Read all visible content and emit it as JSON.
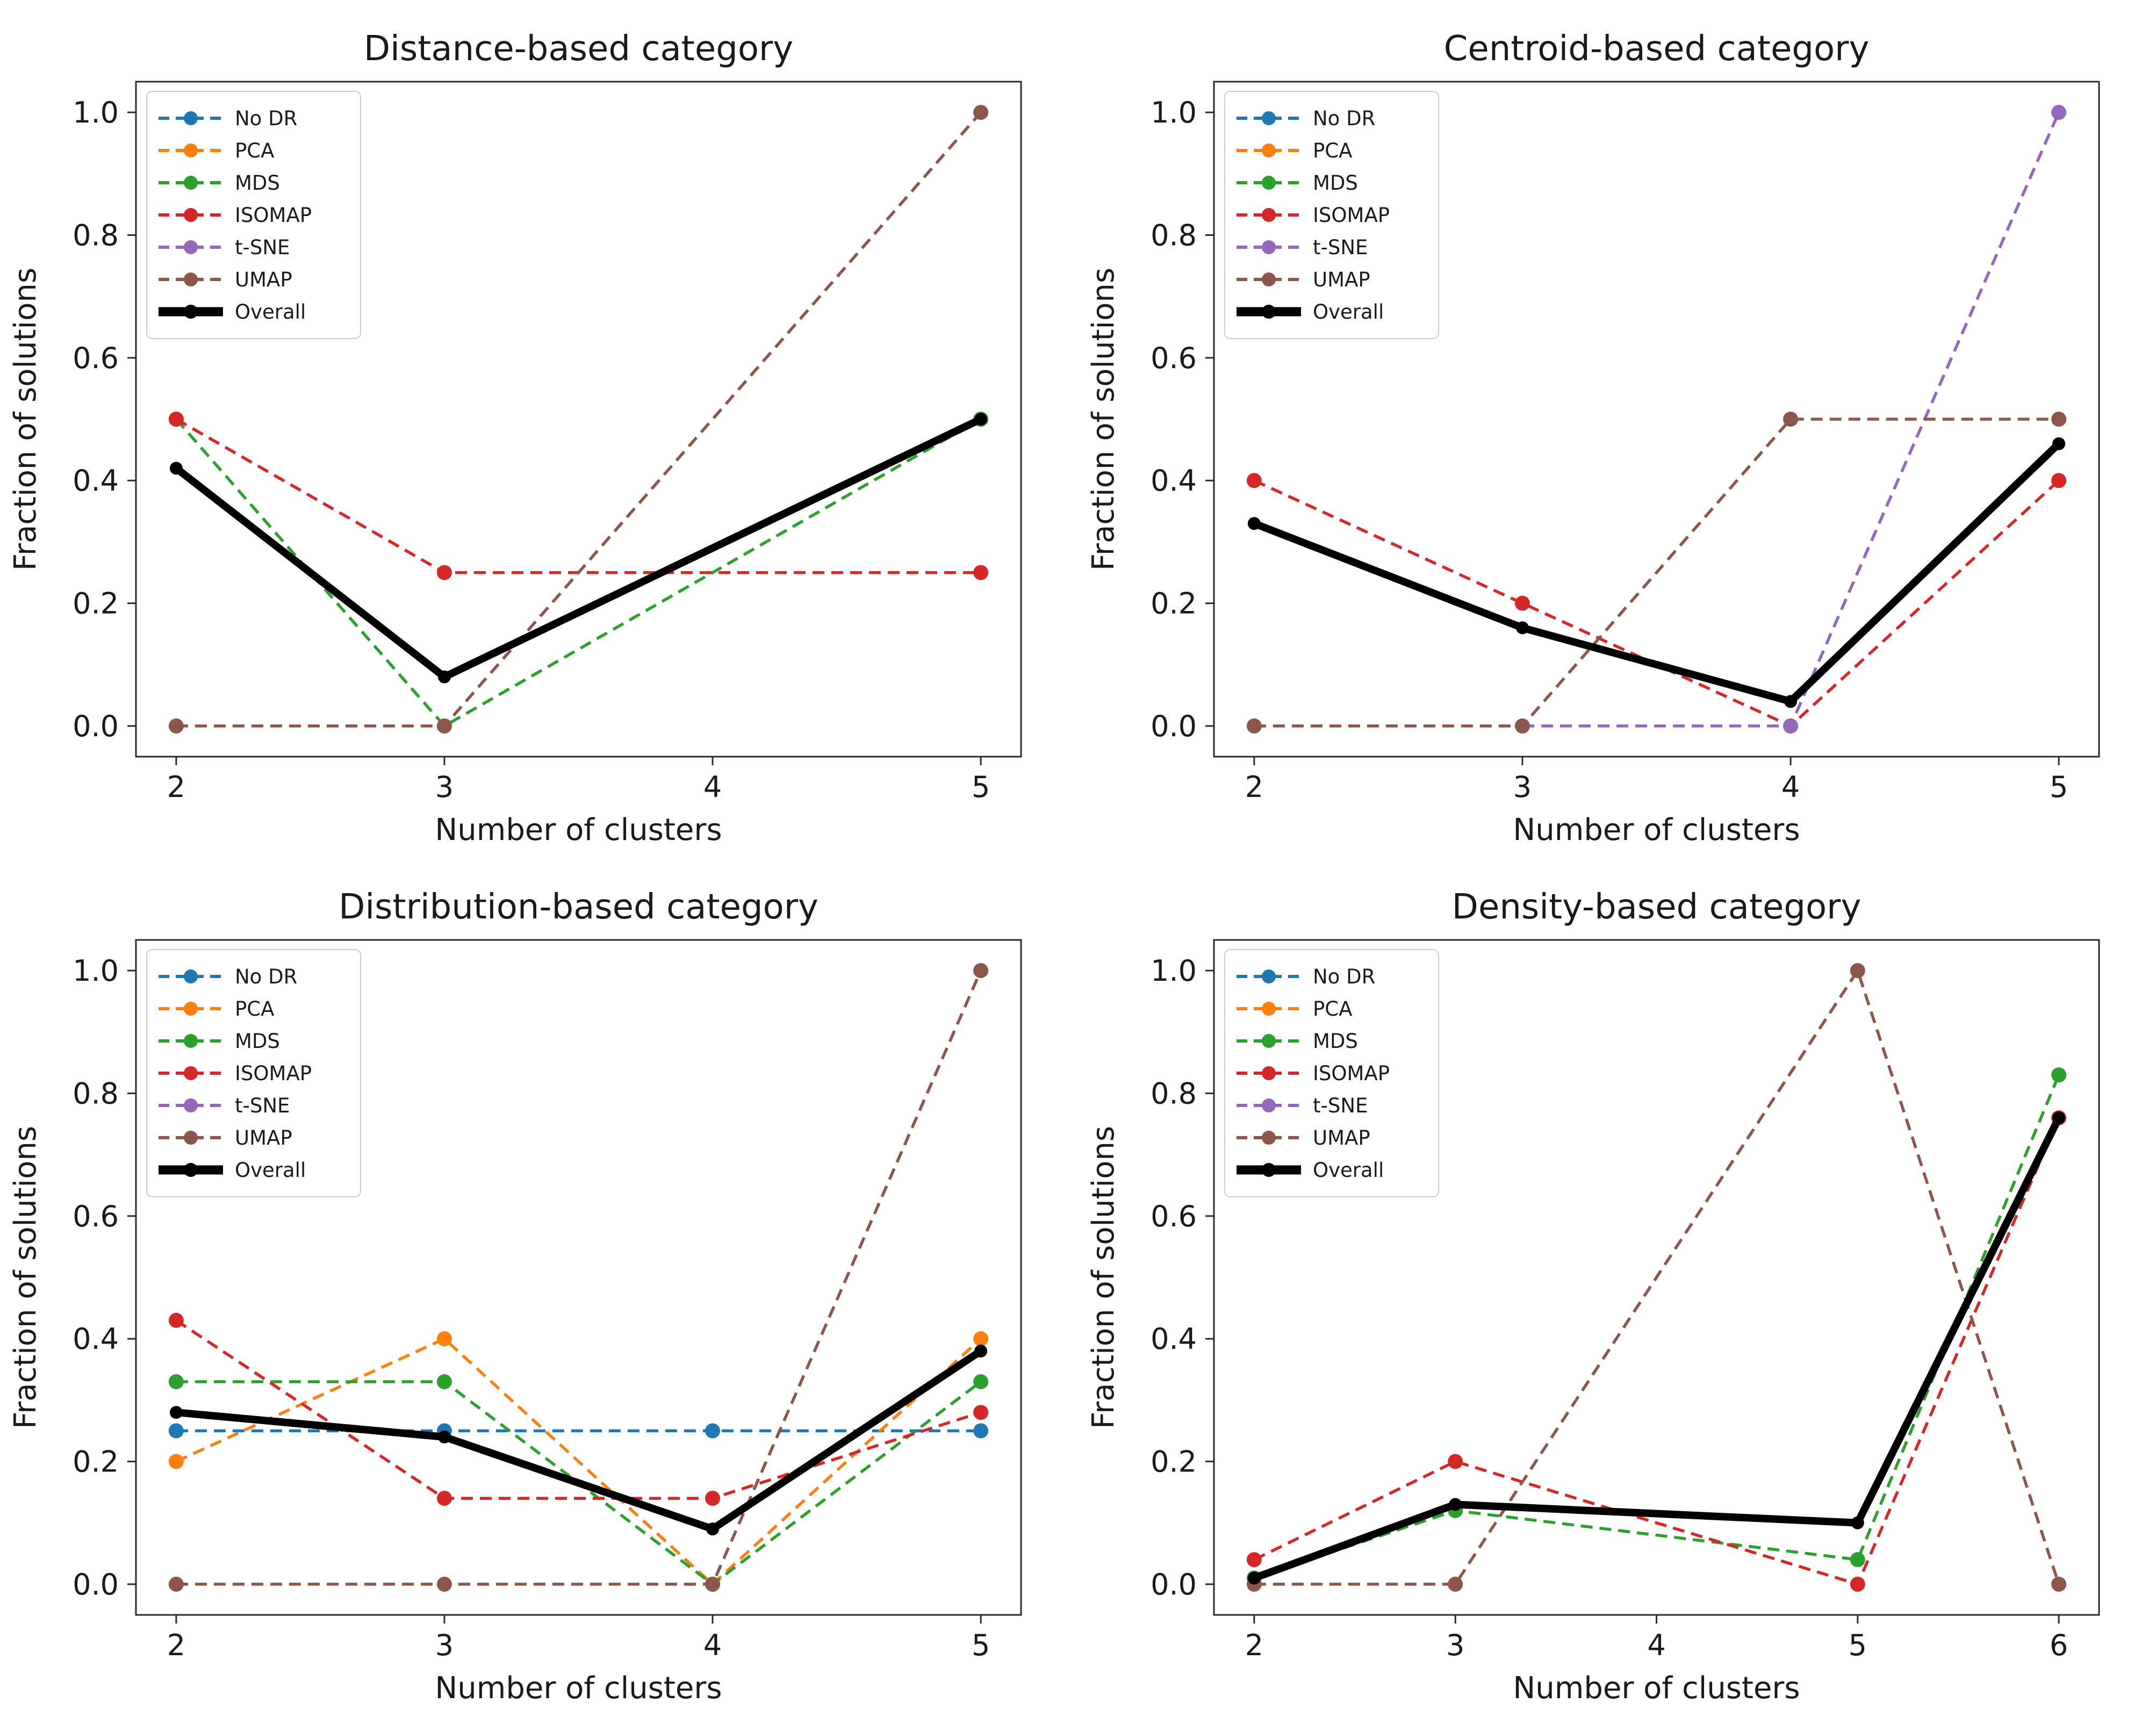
{
  "figure": {
    "background": "#ffffff",
    "text_color": "#1a1a1a",
    "spine_color": "#2b2b2b",
    "legend_border_color": "#cfcfcf"
  },
  "legend": {
    "entries": [
      {
        "label": "No DR",
        "color": "#1f77b4"
      },
      {
        "label": "PCA",
        "color": "#ff7f0e"
      },
      {
        "label": "MDS",
        "color": "#2ca02c"
      },
      {
        "label": "ISOMAP",
        "color": "#d62728"
      },
      {
        "label": "t-SNE",
        "color": "#9467bd"
      },
      {
        "label": "UMAP",
        "color": "#8c564b"
      },
      {
        "label": "Overall",
        "color": "#000000"
      }
    ],
    "position": "upper-left"
  },
  "chart_data": [
    {
      "id": "distance",
      "type": "line",
      "title": "Distance-based category",
      "xlabel": "Number of clusters",
      "ylabel": "Fraction of solutions",
      "xticks": [
        2,
        3,
        4,
        5
      ],
      "yticks": [
        0.0,
        0.2,
        0.4,
        0.6,
        0.8,
        1.0
      ],
      "xlim": [
        1.85,
        5.15
      ],
      "ylim": [
        -0.05,
        1.05
      ],
      "grid": false,
      "legend_position": "upper-left",
      "series": [
        {
          "name": "No DR",
          "color": "#1f77b4",
          "style": "dashed",
          "x": [],
          "y": []
        },
        {
          "name": "PCA",
          "color": "#ff7f0e",
          "style": "dashed",
          "x": [],
          "y": []
        },
        {
          "name": "MDS",
          "color": "#2ca02c",
          "style": "dashed",
          "x": [
            2,
            3,
            5
          ],
          "y": [
            0.5,
            0.0,
            0.5
          ]
        },
        {
          "name": "ISOMAP",
          "color": "#d62728",
          "style": "dashed",
          "x": [
            2,
            3,
            5
          ],
          "y": [
            0.5,
            0.25,
            0.25
          ]
        },
        {
          "name": "t-SNE",
          "color": "#9467bd",
          "style": "dashed",
          "x": [],
          "y": []
        },
        {
          "name": "UMAP",
          "color": "#8c564b",
          "style": "dashed",
          "x": [
            2,
            3,
            5
          ],
          "y": [
            0.0,
            0.0,
            1.0
          ]
        },
        {
          "name": "Overall",
          "color": "#000000",
          "style": "solid-thick",
          "x": [
            2,
            3,
            5
          ],
          "y": [
            0.42,
            0.08,
            0.5
          ]
        }
      ]
    },
    {
      "id": "centroid",
      "type": "line",
      "title": "Centroid-based category",
      "xlabel": "Number of clusters",
      "ylabel": "Fraction of solutions",
      "xticks": [
        2,
        3,
        4,
        5
      ],
      "yticks": [
        0.0,
        0.2,
        0.4,
        0.6,
        0.8,
        1.0
      ],
      "xlim": [
        1.85,
        5.15
      ],
      "ylim": [
        -0.05,
        1.05
      ],
      "grid": false,
      "legend_position": "upper-left",
      "series": [
        {
          "name": "No DR",
          "color": "#1f77b4",
          "style": "dashed",
          "x": [],
          "y": []
        },
        {
          "name": "PCA",
          "color": "#ff7f0e",
          "style": "dashed",
          "x": [],
          "y": []
        },
        {
          "name": "MDS",
          "color": "#2ca02c",
          "style": "dashed",
          "x": [],
          "y": []
        },
        {
          "name": "ISOMAP",
          "color": "#d62728",
          "style": "dashed",
          "x": [
            2,
            3,
            4,
            5
          ],
          "y": [
            0.4,
            0.2,
            0.0,
            0.4
          ]
        },
        {
          "name": "t-SNE",
          "color": "#9467bd",
          "style": "dashed",
          "x": [
            3,
            4,
            5
          ],
          "y": [
            0.0,
            0.0,
            1.0
          ]
        },
        {
          "name": "UMAP",
          "color": "#8c564b",
          "style": "dashed",
          "x": [
            2,
            3,
            4,
            5
          ],
          "y": [
            0.0,
            0.0,
            0.5,
            0.5
          ]
        },
        {
          "name": "Overall",
          "color": "#000000",
          "style": "solid-thick",
          "x": [
            2,
            3,
            4,
            5
          ],
          "y": [
            0.33,
            0.16,
            0.04,
            0.46
          ]
        }
      ]
    },
    {
      "id": "distribution",
      "type": "line",
      "title": "Distribution-based category",
      "xlabel": "Number of clusters",
      "ylabel": "Fraction of solutions",
      "xticks": [
        2,
        3,
        4,
        5
      ],
      "yticks": [
        0.0,
        0.2,
        0.4,
        0.6,
        0.8,
        1.0
      ],
      "xlim": [
        1.85,
        5.15
      ],
      "ylim": [
        -0.05,
        1.05
      ],
      "grid": false,
      "legend_position": "upper-left",
      "series": [
        {
          "name": "No DR",
          "color": "#1f77b4",
          "style": "dashed",
          "x": [
            2,
            3,
            4,
            5
          ],
          "y": [
            0.25,
            0.25,
            0.25,
            0.25
          ]
        },
        {
          "name": "PCA",
          "color": "#ff7f0e",
          "style": "dashed",
          "x": [
            2,
            3,
            4,
            5
          ],
          "y": [
            0.2,
            0.4,
            0.0,
            0.4
          ]
        },
        {
          "name": "MDS",
          "color": "#2ca02c",
          "style": "dashed",
          "x": [
            2,
            3,
            4,
            5
          ],
          "y": [
            0.33,
            0.33,
            0.0,
            0.33
          ]
        },
        {
          "name": "ISOMAP",
          "color": "#d62728",
          "style": "dashed",
          "x": [
            2,
            3,
            4,
            5
          ],
          "y": [
            0.43,
            0.14,
            0.14,
            0.28
          ]
        },
        {
          "name": "t-SNE",
          "color": "#9467bd",
          "style": "dashed",
          "x": [],
          "y": []
        },
        {
          "name": "UMAP",
          "color": "#8c564b",
          "style": "dashed",
          "x": [
            2,
            3,
            4,
            5
          ],
          "y": [
            0.0,
            0.0,
            0.0,
            1.0
          ]
        },
        {
          "name": "Overall",
          "color": "#000000",
          "style": "solid-thick",
          "x": [
            2,
            3,
            4,
            5
          ],
          "y": [
            0.28,
            0.24,
            0.09,
            0.38
          ]
        }
      ]
    },
    {
      "id": "density",
      "type": "line",
      "title": "Density-based category",
      "xlabel": "Number of clusters",
      "ylabel": "Fraction of solutions",
      "xticks": [
        2,
        3,
        4,
        5,
        6
      ],
      "yticks": [
        0.0,
        0.2,
        0.4,
        0.6,
        0.8,
        1.0
      ],
      "xlim": [
        1.8,
        6.2
      ],
      "ylim": [
        -0.05,
        1.05
      ],
      "grid": false,
      "legend_position": "upper-left",
      "series": [
        {
          "name": "No DR",
          "color": "#1f77b4",
          "style": "dashed",
          "x": [],
          "y": []
        },
        {
          "name": "PCA",
          "color": "#ff7f0e",
          "style": "dashed",
          "x": [],
          "y": []
        },
        {
          "name": "MDS",
          "color": "#2ca02c",
          "style": "dashed",
          "x": [
            2,
            3,
            5,
            6
          ],
          "y": [
            0.01,
            0.12,
            0.04,
            0.83
          ]
        },
        {
          "name": "ISOMAP",
          "color": "#d62728",
          "style": "dashed",
          "x": [
            2,
            3,
            5,
            6
          ],
          "y": [
            0.04,
            0.2,
            0.0,
            0.76
          ]
        },
        {
          "name": "t-SNE",
          "color": "#9467bd",
          "style": "dashed",
          "x": [],
          "y": []
        },
        {
          "name": "UMAP",
          "color": "#8c564b",
          "style": "dashed",
          "x": [
            2,
            3,
            5,
            6
          ],
          "y": [
            0.0,
            0.0,
            1.0,
            0.0
          ]
        },
        {
          "name": "Overall",
          "color": "#000000",
          "style": "solid-thick",
          "x": [
            2,
            3,
            5,
            6
          ],
          "y": [
            0.01,
            0.13,
            0.1,
            0.76
          ]
        }
      ]
    }
  ]
}
